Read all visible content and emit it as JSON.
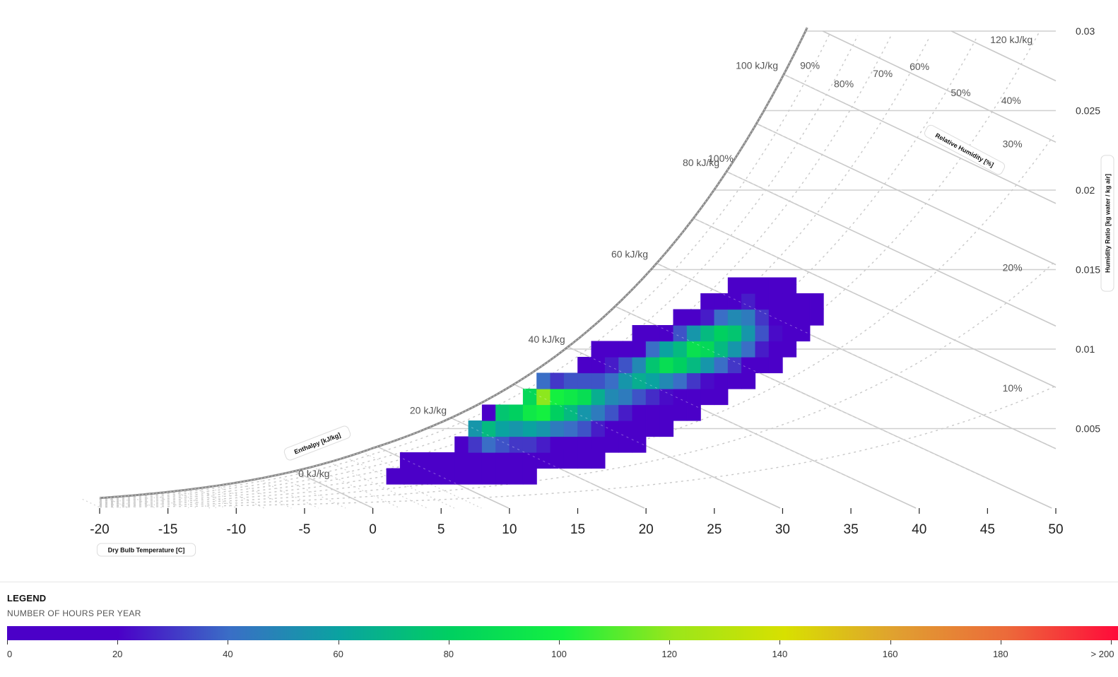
{
  "chart_data": {
    "type": "heatmap",
    "title": "",
    "xlabel": "Dry Bulb Temperature [C]",
    "ylabel": "Humidity Ratio [kg water / kg air]",
    "xlim": [
      -20,
      50
    ],
    "ylim": [
      0,
      0.03
    ],
    "x_ticks": [
      "-20",
      "-15",
      "-10",
      "-5",
      "0",
      "5",
      "10",
      "15",
      "20",
      "25",
      "30",
      "35",
      "40",
      "45",
      "50"
    ],
    "y_ticks": [
      "0.005",
      "0.01",
      "0.015",
      "0.02",
      "0.025",
      "0.03"
    ],
    "relative_humidity_label": "Relative Humidity [%]",
    "relative_humidity_lines": [
      {
        "label": "100%",
        "rh": 100
      },
      {
        "label": "90%",
        "rh": 90
      },
      {
        "label": "80%",
        "rh": 80
      },
      {
        "label": "70%",
        "rh": 70
      },
      {
        "label": "60%",
        "rh": 60
      },
      {
        "label": "50%",
        "rh": 50
      },
      {
        "label": "40%",
        "rh": 40
      },
      {
        "label": "30%",
        "rh": 30
      },
      {
        "label": "20%",
        "rh": 20
      },
      {
        "label": "10%",
        "rh": 10
      }
    ],
    "enthalpy_label": "Enthalpy [kJ/kg]",
    "enthalpy_lines": [
      {
        "label": "0 kJ/kg",
        "h": 0
      },
      {
        "label": "20 kJ/kg",
        "h": 20
      },
      {
        "label": "40 kJ/kg",
        "h": 40
      },
      {
        "label": "60 kJ/kg",
        "h": 60
      },
      {
        "label": "80 kJ/kg",
        "h": 80
      },
      {
        "label": "100 kJ/kg",
        "h": 100
      },
      {
        "label": "120 kJ/kg",
        "h": 120
      }
    ],
    "grid": true,
    "cells": [
      [
        1,
        0,
        1
      ],
      [
        2,
        0,
        2
      ],
      [
        2,
        1,
        1
      ],
      [
        3,
        0,
        3
      ],
      [
        3,
        1,
        2
      ],
      [
        4,
        0,
        3
      ],
      [
        4,
        1,
        3
      ],
      [
        5,
        0,
        4
      ],
      [
        5,
        1,
        4
      ],
      [
        6,
        0,
        5
      ],
      [
        6,
        1,
        6
      ],
      [
        6,
        2,
        10
      ],
      [
        7,
        0,
        6
      ],
      [
        7,
        1,
        8
      ],
      [
        7,
        2,
        30
      ],
      [
        7,
        3,
        55
      ],
      [
        8,
        0,
        6
      ],
      [
        8,
        1,
        9
      ],
      [
        8,
        2,
        40
      ],
      [
        8,
        3,
        70
      ],
      [
        8,
        4,
        20
      ],
      [
        9,
        0,
        5
      ],
      [
        9,
        1,
        8
      ],
      [
        9,
        2,
        35
      ],
      [
        9,
        3,
        60
      ],
      [
        9,
        4,
        75
      ],
      [
        10,
        0,
        4
      ],
      [
        10,
        1,
        7
      ],
      [
        10,
        2,
        30
      ],
      [
        10,
        3,
        55
      ],
      [
        10,
        4,
        80
      ],
      [
        11,
        0,
        4
      ],
      [
        11,
        1,
        6
      ],
      [
        11,
        2,
        30
      ],
      [
        11,
        3,
        60
      ],
      [
        11,
        4,
        95
      ],
      [
        11,
        5,
        85
      ],
      [
        12,
        1,
        5
      ],
      [
        12,
        2,
        25
      ],
      [
        12,
        3,
        55
      ],
      [
        12,
        4,
        100
      ],
      [
        12,
        5,
        118
      ],
      [
        12,
        6,
        40
      ],
      [
        13,
        1,
        5
      ],
      [
        13,
        2,
        20
      ],
      [
        13,
        3,
        45
      ],
      [
        13,
        4,
        80
      ],
      [
        13,
        5,
        100
      ],
      [
        13,
        6,
        30
      ],
      [
        14,
        1,
        5
      ],
      [
        14,
        2,
        18
      ],
      [
        14,
        3,
        40
      ],
      [
        14,
        4,
        70
      ],
      [
        14,
        5,
        95
      ],
      [
        14,
        6,
        35
      ],
      [
        15,
        1,
        5
      ],
      [
        15,
        2,
        15
      ],
      [
        15,
        3,
        35
      ],
      [
        15,
        4,
        55
      ],
      [
        15,
        5,
        88
      ],
      [
        15,
        6,
        35
      ],
      [
        15,
        7,
        10
      ],
      [
        16,
        1,
        5
      ],
      [
        16,
        2,
        12
      ],
      [
        16,
        3,
        25
      ],
      [
        16,
        4,
        45
      ],
      [
        16,
        5,
        65
      ],
      [
        16,
        6,
        35
      ],
      [
        16,
        7,
        15
      ],
      [
        16,
        8,
        5
      ],
      [
        17,
        2,
        8
      ],
      [
        17,
        3,
        18
      ],
      [
        17,
        4,
        35
      ],
      [
        17,
        5,
        50
      ],
      [
        17,
        6,
        40
      ],
      [
        17,
        7,
        25
      ],
      [
        17,
        8,
        10
      ],
      [
        18,
        2,
        6
      ],
      [
        18,
        3,
        12
      ],
      [
        18,
        4,
        25
      ],
      [
        18,
        5,
        45
      ],
      [
        18,
        6,
        55
      ],
      [
        18,
        7,
        35
      ],
      [
        18,
        8,
        15
      ],
      [
        19,
        2,
        4
      ],
      [
        19,
        3,
        8
      ],
      [
        19,
        4,
        18
      ],
      [
        19,
        5,
        35
      ],
      [
        19,
        6,
        65
      ],
      [
        19,
        7,
        50
      ],
      [
        19,
        8,
        20
      ],
      [
        19,
        9,
        8
      ],
      [
        20,
        3,
        6
      ],
      [
        20,
        4,
        12
      ],
      [
        20,
        5,
        28
      ],
      [
        20,
        6,
        60
      ],
      [
        20,
        7,
        75
      ],
      [
        20,
        8,
        40
      ],
      [
        20,
        9,
        12
      ],
      [
        21,
        3,
        5
      ],
      [
        21,
        4,
        10
      ],
      [
        21,
        5,
        22
      ],
      [
        21,
        6,
        50
      ],
      [
        21,
        7,
        88
      ],
      [
        21,
        8,
        60
      ],
      [
        21,
        9,
        20
      ],
      [
        22,
        4,
        8
      ],
      [
        22,
        5,
        18
      ],
      [
        22,
        6,
        40
      ],
      [
        22,
        7,
        80
      ],
      [
        22,
        8,
        70
      ],
      [
        22,
        9,
        35
      ],
      [
        22,
        10,
        10
      ],
      [
        23,
        4,
        6
      ],
      [
        23,
        5,
        14
      ],
      [
        23,
        6,
        30
      ],
      [
        23,
        7,
        70
      ],
      [
        23,
        8,
        90
      ],
      [
        23,
        9,
        55
      ],
      [
        23,
        10,
        15
      ],
      [
        24,
        5,
        10
      ],
      [
        24,
        6,
        22
      ],
      [
        24,
        7,
        55
      ],
      [
        24,
        8,
        85
      ],
      [
        24,
        9,
        70
      ],
      [
        24,
        10,
        25
      ],
      [
        24,
        11,
        8
      ],
      [
        25,
        5,
        8
      ],
      [
        25,
        6,
        18
      ],
      [
        25,
        7,
        40
      ],
      [
        25,
        8,
        70
      ],
      [
        25,
        9,
        80
      ],
      [
        25,
        10,
        40
      ],
      [
        25,
        11,
        12
      ],
      [
        26,
        6,
        12
      ],
      [
        26,
        7,
        30
      ],
      [
        26,
        8,
        55
      ],
      [
        26,
        9,
        75
      ],
      [
        26,
        10,
        50
      ],
      [
        26,
        11,
        20
      ],
      [
        26,
        12,
        6
      ],
      [
        27,
        6,
        8
      ],
      [
        27,
        7,
        20
      ],
      [
        27,
        8,
        40
      ],
      [
        27,
        9,
        55
      ],
      [
        27,
        10,
        45
      ],
      [
        27,
        11,
        25
      ],
      [
        27,
        12,
        8
      ],
      [
        28,
        7,
        12
      ],
      [
        28,
        8,
        25
      ],
      [
        28,
        9,
        35
      ],
      [
        28,
        10,
        30
      ],
      [
        28,
        11,
        20
      ],
      [
        28,
        12,
        8
      ],
      [
        29,
        7,
        8
      ],
      [
        29,
        8,
        15
      ],
      [
        29,
        9,
        22
      ],
      [
        29,
        10,
        20
      ],
      [
        29,
        11,
        12
      ],
      [
        29,
        12,
        5
      ],
      [
        30,
        8,
        8
      ],
      [
        30,
        9,
        10
      ],
      [
        30,
        10,
        10
      ],
      [
        30,
        11,
        8
      ],
      [
        30,
        12,
        4
      ],
      [
        31,
        9,
        5
      ],
      [
        31,
        10,
        6
      ],
      [
        31,
        11,
        5
      ],
      [
        32,
        10,
        3
      ],
      [
        32,
        11,
        3
      ]
    ],
    "cell_encoding": [
      "dry bulb temperature [C]",
      "humidity ratio bin (0.001 kg/kg)",
      "number of hours per year"
    ]
  },
  "legend": {
    "title": "LEGEND",
    "subtitle": "NUMBER OF HOURS PER YEAR",
    "stops": [
      {
        "value": 0,
        "color": "#4b00c8"
      },
      {
        "value": 20,
        "color": "#4b00c8"
      },
      {
        "value": 40,
        "color": "#3a6ec6"
      },
      {
        "value": 60,
        "color": "#0aa3a0"
      },
      {
        "value": 80,
        "color": "#00d060"
      },
      {
        "value": 100,
        "color": "#14f040"
      },
      {
        "value": 120,
        "color": "#9ae61a"
      },
      {
        "value": 140,
        "color": "#d8e000"
      },
      {
        "value": 160,
        "color": "#e0a030"
      },
      {
        "value": 180,
        "color": "#ec6a3a"
      },
      {
        "value": 200,
        "color": "#ff0a3a"
      }
    ],
    "ticks": [
      "0",
      "20",
      "40",
      "60",
      "80",
      "100",
      "120",
      "140",
      "160",
      "180",
      "> 200"
    ]
  }
}
